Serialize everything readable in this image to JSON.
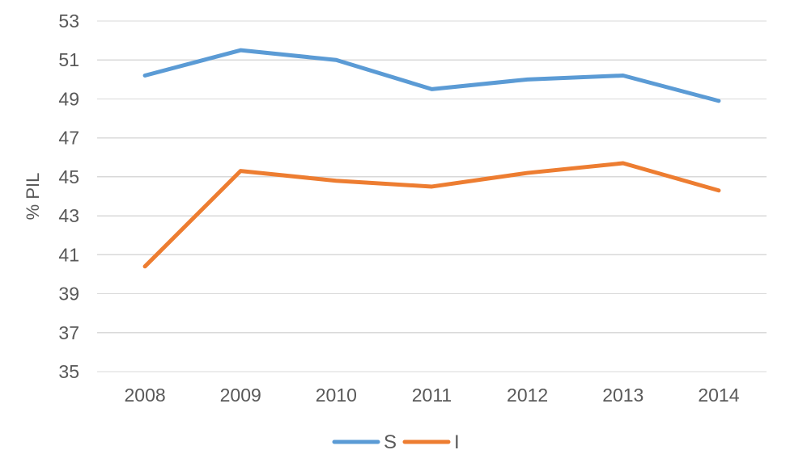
{
  "chart_data": {
    "type": "line",
    "title": "",
    "xlabel": "",
    "ylabel": "% PIL",
    "x": [
      "2008",
      "2009",
      "2010",
      "2011",
      "2012",
      "2013",
      "2014"
    ],
    "ylim": [
      35,
      53
    ],
    "ytick_step": 2,
    "yticks": [
      35,
      37,
      39,
      41,
      43,
      45,
      47,
      49,
      51,
      53
    ],
    "grid": "horizontal",
    "legend_position": "bottom-center",
    "series": [
      {
        "name": "S",
        "color": "#5B9BD5",
        "values": [
          50.2,
          51.5,
          51.0,
          49.5,
          50.0,
          50.2,
          48.9
        ]
      },
      {
        "name": "I",
        "color": "#ED7D31",
        "values": [
          40.4,
          45.3,
          44.8,
          44.5,
          45.2,
          45.7,
          44.3
        ]
      }
    ],
    "colors": {
      "axis_text": "#595959",
      "gridline": "#D9D9D9",
      "background": "#FFFFFF"
    }
  }
}
